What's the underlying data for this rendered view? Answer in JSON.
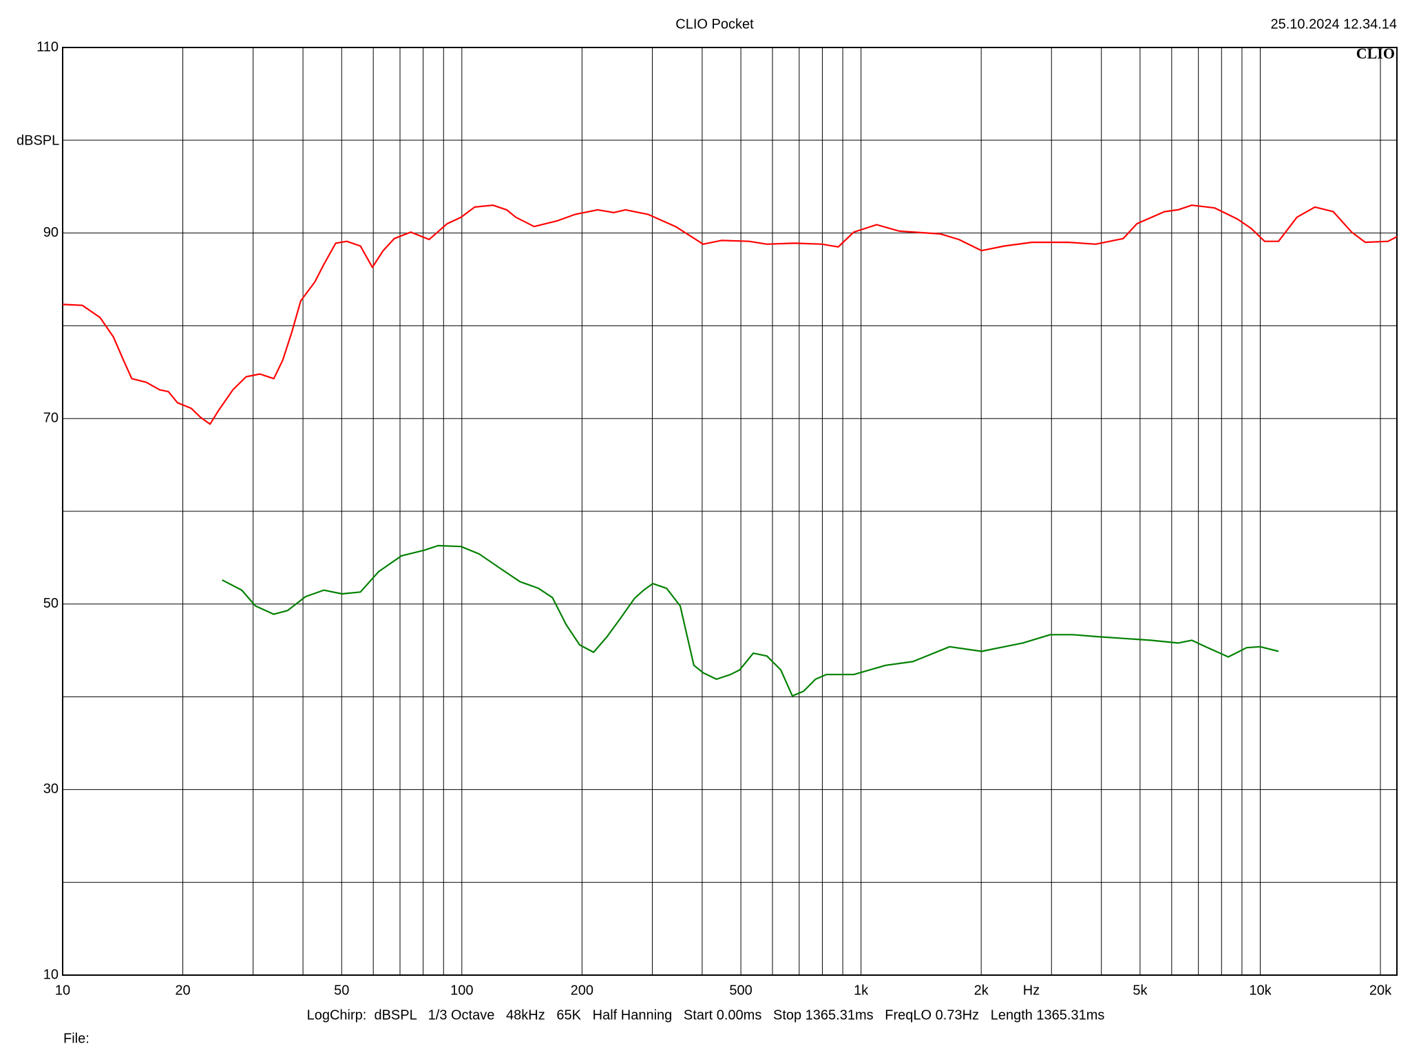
{
  "chart_data": {
    "type": "line",
    "title": "CLIO Pocket",
    "timestamp": "25.10.2024 12.34.14",
    "logo": "CLIO",
    "y_label": "dBSPL",
    "x_label": "Hz",
    "footer": "LogChirp:  dBSPL   1/3 Octave   48kHz   65K   Half Hanning   Start 0.00ms   Stop 1365.31ms   FreqLO 0.73Hz   Length 1365.31ms",
    "file_label": "File:",
    "x_log": true,
    "grid": true,
    "xlim": [
      10,
      22000
    ],
    "ylim": [
      10,
      110
    ],
    "xticks": [
      10,
      20,
      50,
      100,
      200,
      500,
      {
        "value": 1000,
        "label": "1k"
      },
      {
        "value": 2000,
        "label": "2k"
      },
      {
        "value": 5000,
        "label": "5k"
      },
      {
        "value": 10000,
        "label": "10k"
      },
      {
        "value": 20000,
        "label": "20k"
      }
    ],
    "xgrid_minor": [
      30,
      40,
      60,
      70,
      80,
      90,
      300,
      400,
      600,
      700,
      800,
      900,
      3000,
      4000,
      6000,
      7000,
      8000,
      9000
    ],
    "yticks": [
      10,
      30,
      50,
      70,
      90,
      110
    ],
    "ygrid_minor": [
      20,
      40,
      60,
      80,
      100
    ],
    "series": [
      {
        "color": "#ff0000",
        "x": [
          10,
          11.2,
          12.4,
          13.4,
          14.2,
          14.9,
          16.2,
          17.5,
          18.4,
          19.4,
          21.0,
          22.2,
          23.4,
          24.6,
          26.7,
          28.8,
          31.2,
          33.8,
          35.6,
          37.5,
          39.5,
          42.8,
          45.1,
          48.3,
          51.5,
          55.7,
          59.7,
          63.5,
          67.7,
          74.5,
          82.8,
          91.9,
          99.5,
          107.7,
          119.6,
          129.5,
          136.5,
          151.7,
          173,
          192,
          219,
          240,
          257,
          293,
          343,
          402,
          447,
          524,
          581,
          681,
          798,
          877,
          959,
          1094,
          1248,
          1581,
          1758,
          2005,
          2286,
          2679,
          3306,
          3873,
          4537,
          4909,
          5754,
          6226,
          6737,
          7690,
          8770,
          9487,
          10260,
          11110,
          12360,
          13710,
          15240,
          16940,
          18330,
          20890,
          22000
        ],
        "values": [
          82.3,
          82.2,
          80.9,
          78.8,
          76.3,
          74.3,
          73.9,
          73.1,
          72.9,
          71.7,
          71.1,
          70.1,
          69.4,
          70.9,
          73.1,
          74.5,
          74.8,
          74.3,
          76.3,
          79.3,
          82.7,
          84.7,
          86.6,
          88.9,
          89.1,
          88.6,
          86.3,
          88.1,
          89.4,
          90.1,
          89.3,
          91.0,
          91.7,
          92.8,
          93.0,
          92.5,
          91.7,
          90.7,
          91.3,
          92.0,
          92.5,
          92.2,
          92.5,
          92.0,
          90.7,
          88.8,
          89.2,
          89.1,
          88.8,
          88.9,
          88.8,
          88.5,
          90.1,
          90.9,
          90.2,
          89.9,
          89.3,
          88.1,
          88.6,
          89.0,
          89.0,
          88.8,
          89.4,
          91.0,
          92.3,
          92.5,
          93.0,
          92.7,
          91.5,
          90.5,
          89.1,
          89.1,
          91.7,
          92.8,
          92.3,
          90.1,
          89.0,
          89.1,
          89.6
        ]
      },
      {
        "color": "#008000",
        "x": [
          25.1,
          28.1,
          30.4,
          33.8,
          36.6,
          40.6,
          45.1,
          50.1,
          55.7,
          61.9,
          70.6,
          80.5,
          87.2,
          99.5,
          110.5,
          126.2,
          140.0,
          155.6,
          168.6,
          182.4,
          197.3,
          213.8,
          231.2,
          250,
          270.6,
          285.4,
          300.8,
          325.8,
          352.4,
          381.2,
          402,
          434.5,
          470.9,
          496.6,
          537,
          581,
          629.5,
          673,
          717.8,
          769,
          818.5,
          909.8,
          959,
          1153,
          1349,
          1667,
          2005,
          2286,
          2541,
          2979,
          3397,
          3873,
          4537,
          5309,
          6226,
          6737,
          7295,
          8318,
          9246,
          10000,
          11110
        ],
        "values": [
          52.6,
          51.5,
          49.8,
          48.9,
          49.3,
          50.8,
          51.5,
          51.1,
          51.3,
          53.5,
          55.2,
          55.8,
          56.3,
          56.2,
          55.4,
          53.7,
          52.4,
          51.7,
          50.7,
          47.8,
          45.6,
          44.8,
          46.5,
          48.5,
          50.6,
          51.5,
          52.2,
          51.7,
          49.8,
          43.4,
          42.6,
          41.9,
          42.4,
          42.9,
          44.7,
          44.4,
          42.9,
          40.1,
          40.6,
          41.9,
          42.4,
          42.4,
          42.4,
          43.4,
          43.8,
          45.4,
          44.9,
          45.4,
          45.8,
          46.7,
          46.7,
          46.5,
          46.3,
          46.1,
          45.8,
          46.1,
          45.4,
          44.3,
          45.3,
          45.4,
          44.9
        ]
      }
    ]
  }
}
